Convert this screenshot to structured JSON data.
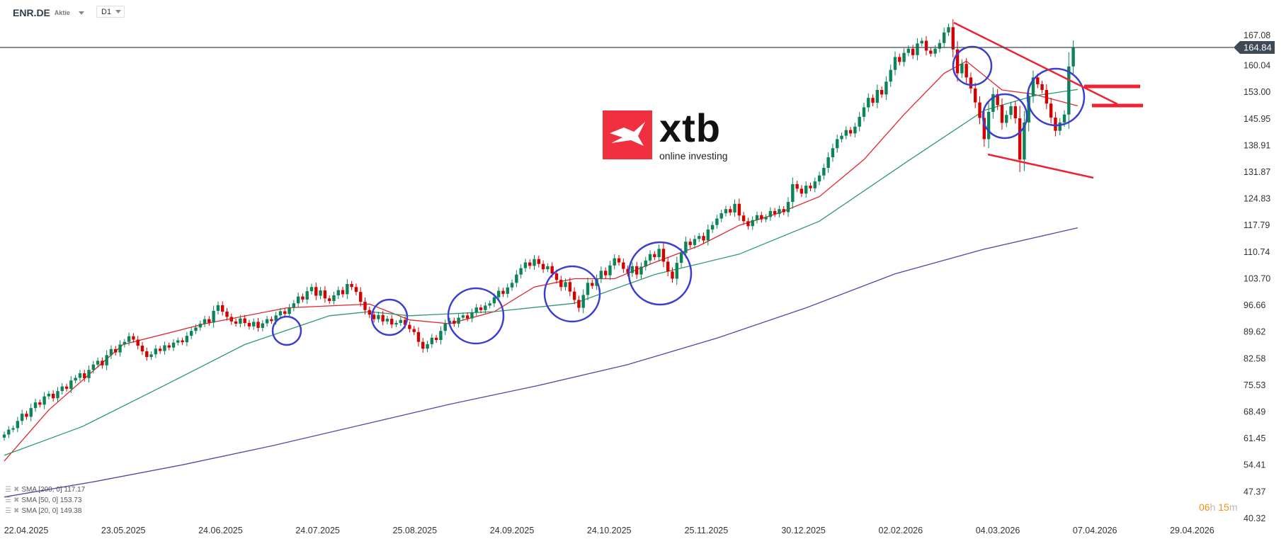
{
  "header": {
    "symbol": "ENR.DE",
    "type": "Aktie",
    "timeframe": "D1"
  },
  "logo": {
    "brand": "xtb",
    "tagline": "online investing",
    "color": "#f0303e"
  },
  "timer": {
    "hours": "06",
    "h": "h",
    "minutes": "15",
    "m": "m"
  },
  "legend": [
    {
      "label": "SMA [200, 0] 117.17"
    },
    {
      "label": "SMA [50, 0] 153.73"
    },
    {
      "label": "SMA [20, 0] 149.38"
    }
  ],
  "chart_data": {
    "type": "candlestick",
    "title": "",
    "current_price": "164.84",
    "ylim": [
      40.32,
      167.08
    ],
    "y_ticks": [
      "167.08",
      "160.04",
      "153.00",
      "145.95",
      "138.91",
      "131.87",
      "124.83",
      "117.79",
      "110.74",
      "103.70",
      "96.66",
      "89.62",
      "82.58",
      "75.53",
      "68.49",
      "61.45",
      "54.41",
      "47.37",
      "40.32"
    ],
    "x_ticks": [
      "22.04.2025",
      "23.05.2025",
      "24.06.2025",
      "24.07.2025",
      "25.08.2025",
      "24.09.2025",
      "24.10.2025",
      "25.11.2025",
      "30.12.2025",
      "02.02.2026",
      "04.03.2026",
      "07.04.2026",
      "29.04.2026"
    ],
    "colors": {
      "up": "#0b8457",
      "down": "#d50000",
      "sma20": "#e3262b",
      "sma50": "#2e9a6e",
      "sma200": "#4a4aa8",
      "annotation_circle": "#3a3fd0",
      "annotation_line": "#ee2233",
      "price_tag": "#3e4b56"
    },
    "closes": [
      62.5,
      63.8,
      64.2,
      66.1,
      68.0,
      67.2,
      69.5,
      71.0,
      70.4,
      72.6,
      73.3,
      72.1,
      74.0,
      75.2,
      74.6,
      76.8,
      77.5,
      78.7,
      77.4,
      79.6,
      81.0,
      82.0,
      80.8,
      83.5,
      85.1,
      84.2,
      86.3,
      87.0,
      88.5,
      87.6,
      86.0,
      84.5,
      83.0,
      83.7,
      85.2,
      84.6,
      86.1,
      85.5,
      86.8,
      87.4,
      86.9,
      88.6,
      89.9,
      90.8,
      91.8,
      93.0,
      92.1,
      95.2,
      96.7,
      95.0,
      93.6,
      92.4,
      91.8,
      93.2,
      92.0,
      91.1,
      92.3,
      90.7,
      91.9,
      93.0,
      92.5,
      94.0,
      95.1,
      94.4,
      96.0,
      97.2,
      99.0,
      98.2,
      100.4,
      101.5,
      99.2,
      100.6,
      98.5,
      97.8,
      99.3,
      100.7,
      99.6,
      102.3,
      101.5,
      100.2,
      97.6,
      95.4,
      94.2,
      93.0,
      94.1,
      92.4,
      93.1,
      91.6,
      92.0,
      92.8,
      91.5,
      90.4,
      89.6,
      87.0,
      85.2,
      86.4,
      88.1,
      87.5,
      89.9,
      91.8,
      92.6,
      91.8,
      93.4,
      94.0,
      93.2,
      94.8,
      96.1,
      95.4,
      96.6,
      97.2,
      98.8,
      100.5,
      99.7,
      101.4,
      102.6,
      104.8,
      106.5,
      108.0,
      107.1,
      108.9,
      107.6,
      106.2,
      107.0,
      105.1,
      103.4,
      101.5,
      102.8,
      100.3,
      98.1,
      96.0,
      99.4,
      102.6,
      101.8,
      103.7,
      105.8,
      104.6,
      107.2,
      109.1,
      108.0,
      106.3,
      105.2,
      107.0,
      104.8,
      106.9,
      108.5,
      110.2,
      109.4,
      111.6,
      108.2,
      105.6,
      103.7,
      107.9,
      110.5,
      113.5,
      112.6,
      114.2,
      115.0,
      113.8,
      116.7,
      117.9,
      119.6,
      121.0,
      122.1,
      121.2,
      123.5,
      120.4,
      118.9,
      117.6,
      119.2,
      120.5,
      119.4,
      120.0,
      121.6,
      120.8,
      122.1,
      121.3,
      124.0,
      128.7,
      127.5,
      126.2,
      128.3,
      127.6,
      129.4,
      131.0,
      133.0,
      135.8,
      138.2,
      140.6,
      141.5,
      143.0,
      142.1,
      143.9,
      146.5,
      149.0,
      151.5,
      150.2,
      153.6,
      152.4,
      155.8,
      158.9,
      162.3,
      161.0,
      163.4,
      164.5,
      162.8,
      165.9,
      166.6,
      164.0,
      163.2,
      164.5,
      166.0,
      168.8,
      170.2,
      164.3,
      158.0,
      160.5,
      156.9,
      154.0,
      150.3,
      146.2,
      140.6,
      147.8,
      152.5,
      149.6,
      144.9,
      147.0,
      149.3,
      146.1,
      135.2,
      145.0,
      152.0,
      156.9,
      155.1,
      153.6,
      150.0,
      146.3,
      142.8,
      145.0,
      147.1,
      159.8,
      164.84
    ],
    "sma": [
      {
        "name": "SMA [20, 0]",
        "color_key": "sma20",
        "points": [
          [
            0,
            55.5
          ],
          [
            10,
            69
          ],
          [
            26.7,
            86.3
          ],
          [
            45,
            91.8
          ],
          [
            63.5,
            96
          ],
          [
            82,
            97
          ],
          [
            91,
            92.8
          ],
          [
            100,
            91.8
          ],
          [
            110,
            95
          ],
          [
            119,
            101.5
          ],
          [
            128,
            103.7
          ],
          [
            137,
            103.7
          ],
          [
            146,
            108
          ],
          [
            156,
            112.4
          ],
          [
            165,
            117.8
          ],
          [
            174,
            121.1
          ],
          [
            183,
            125.4
          ],
          [
            193,
            135.2
          ],
          [
            202,
            147.1
          ],
          [
            211,
            158
          ],
          [
            216,
            161.2
          ],
          [
            224,
            153.6
          ],
          [
            231,
            152.5
          ],
          [
            241,
            149.38
          ]
        ]
      },
      {
        "name": "SMA [50, 0]",
        "color_key": "sma50",
        "points": [
          [
            0,
            57
          ],
          [
            17.5,
            64.6
          ],
          [
            36,
            75.5
          ],
          [
            54,
            86.3
          ],
          [
            73,
            93.9
          ],
          [
            82,
            95
          ],
          [
            91,
            93.9
          ],
          [
            110,
            95
          ],
          [
            128,
            97.2
          ],
          [
            146,
            104.8
          ],
          [
            165,
            110.2
          ],
          [
            183,
            118.9
          ],
          [
            202,
            134.1
          ],
          [
            220,
            148.2
          ],
          [
            231,
            152
          ],
          [
            241,
            153.73
          ]
        ]
      },
      {
        "name": "SMA [200, 0]",
        "color_key": "sma200",
        "points": [
          [
            0,
            46
          ],
          [
            20,
            50
          ],
          [
            40,
            54.5
          ],
          [
            60,
            59.5
          ],
          [
            80,
            65
          ],
          [
            100,
            70.5
          ],
          [
            120,
            75.5
          ],
          [
            140,
            81
          ],
          [
            160,
            88
          ],
          [
            180,
            96
          ],
          [
            200,
            105
          ],
          [
            220,
            111.5
          ],
          [
            241,
            117.17
          ]
        ]
      }
    ]
  }
}
